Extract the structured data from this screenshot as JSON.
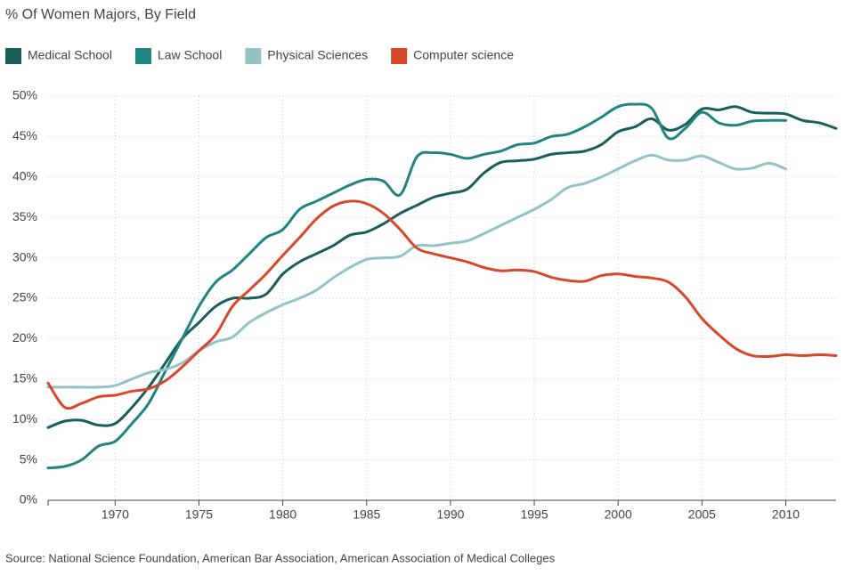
{
  "chart_data": {
    "type": "line",
    "title": "% Of Women Majors, By Field",
    "source": "Source: National Science Foundation, American Bar Association, American Association of Medical Colleges",
    "legend": "top",
    "grid": true,
    "x": [
      1966,
      1967,
      1968,
      1969,
      1970,
      1971,
      1972,
      1973,
      1974,
      1975,
      1976,
      1977,
      1978,
      1979,
      1980,
      1981,
      1982,
      1983,
      1984,
      1985,
      1986,
      1987,
      1988,
      1989,
      1990,
      1991,
      1992,
      1993,
      1994,
      1995,
      1996,
      1997,
      1998,
      1999,
      2000,
      2001,
      2002,
      2003,
      2004,
      2005,
      2006,
      2007,
      2008,
      2009,
      2010,
      2011,
      2012,
      2013
    ],
    "xlim": [
      1966,
      2013
    ],
    "xticks": [
      1970,
      1975,
      1980,
      1985,
      1990,
      1995,
      2000,
      2005,
      2010
    ],
    "ylim": [
      0,
      50
    ],
    "yticks": [
      {
        "value": 0,
        "label": "0%"
      },
      {
        "value": 5,
        "label": "5%"
      },
      {
        "value": 10,
        "label": "10%"
      },
      {
        "value": 15,
        "label": "15%"
      },
      {
        "value": 20,
        "label": "20%"
      },
      {
        "value": 25,
        "label": "25%"
      },
      {
        "value": 30,
        "label": "30%"
      },
      {
        "value": 35,
        "label": "35%"
      },
      {
        "value": 40,
        "label": "40%"
      },
      {
        "value": 45,
        "label": "45%"
      },
      {
        "value": 50,
        "label": "50%"
      }
    ],
    "series": [
      {
        "name": "Medical School",
        "color": "#1a5e5a",
        "values": [
          9,
          9.8,
          9.9,
          9.3,
          9.5,
          11.5,
          14,
          17,
          20,
          22,
          24,
          25,
          25,
          25.5,
          28,
          29.5,
          30.5,
          31.5,
          32.8,
          33.2,
          34.2,
          35.5,
          36.5,
          37.5,
          38,
          38.5,
          40.5,
          41.8,
          42,
          42.2,
          42.8,
          43,
          43.2,
          44,
          45.6,
          46.2,
          47.2,
          45.8,
          46.5,
          48.4,
          48.3,
          48.7,
          48,
          47.9,
          47.8,
          47,
          46.7,
          46
        ]
      },
      {
        "name": "Law School",
        "color": "#1f8482",
        "values": [
          4,
          4.2,
          5,
          6.7,
          7.3,
          9.5,
          12,
          16,
          20,
          24,
          27,
          28.5,
          30.5,
          32.5,
          33.5,
          36,
          37,
          38,
          39,
          39.7,
          39.5,
          37.8,
          42.5,
          43,
          42.8,
          42.3,
          42.8,
          43.2,
          44,
          44.2,
          45,
          45.3,
          46.2,
          47.4,
          48.7,
          49,
          48.5,
          44.8,
          46,
          48,
          46.7,
          46.4,
          46.9,
          47,
          47,
          null,
          null,
          null
        ]
      },
      {
        "name": "Physical Sciences",
        "color": "#93c4c1",
        "values": [
          14,
          14,
          14,
          14,
          14.2,
          15,
          15.8,
          16.2,
          17,
          18.5,
          19.6,
          20.2,
          22,
          23.2,
          24.2,
          25,
          26,
          27.5,
          28.8,
          29.8,
          30,
          30.2,
          31.5,
          31.5,
          31.8,
          32.1,
          33,
          34,
          35,
          36,
          37.2,
          38.7,
          39.2,
          40,
          41,
          42,
          42.7,
          42.1,
          42.1,
          42.6,
          41.8,
          41,
          41.1,
          41.7,
          41,
          null,
          null,
          null
        ]
      },
      {
        "name": "Computer science",
        "color": "#d9472b",
        "values": [
          14.5,
          11.5,
          12,
          12.8,
          13,
          13.5,
          13.8,
          14.8,
          16.5,
          18.5,
          20.5,
          24,
          26,
          28,
          30.3,
          32.5,
          34.8,
          36.4,
          37,
          36.7,
          35.5,
          33.5,
          31.2,
          30.5,
          30,
          29.5,
          28.8,
          28.4,
          28.5,
          28.3,
          27.6,
          27.2,
          27.1,
          27.8,
          28,
          27.7,
          27.5,
          27,
          25.2,
          22.5,
          20.5,
          18.8,
          17.9,
          17.8,
          18,
          17.9,
          18,
          17.9
        ]
      }
    ]
  }
}
